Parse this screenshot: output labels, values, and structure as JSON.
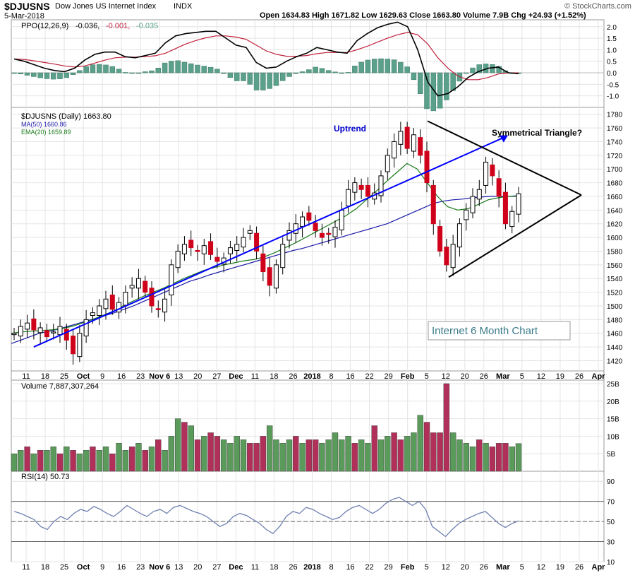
{
  "header": {
    "symbol": "$DJUSNS",
    "name": "Dow Jones US Internet Index",
    "exchange": "INDX",
    "date": "5-Mar-2018",
    "ohlc": "Open 1634.83  High 1671.82  Low 1629.63  Close 1663.80  Volume 7.9B  Chg +24.93 (+1.52%)",
    "credit": "© StockCharts.com"
  },
  "colors": {
    "up": "#ffffff",
    "down": "#d0021b",
    "volume_up": "#5a9a5a",
    "volume_down": "#b0305a",
    "ma50": "#1a1aa8",
    "ema20": "#1a7a1a",
    "ppo": "#000000",
    "signal": "#c0203a",
    "histogram": "#5aa08a",
    "rsi": "#7080b0",
    "trendline": "#0000ff",
    "annotation_blue": "#0000cc",
    "box_text": "#3a7a8a"
  },
  "chart_data": [
    {
      "panel": "ppo",
      "type": "line",
      "label_title": "PPO(12,26,9)",
      "ppo_value": "-0.036",
      "signal_value": "-0.001",
      "hist_value": "-0.035",
      "ylim": [
        -1.5,
        2.3
      ],
      "yticks": [
        "2.0",
        "1.5",
        "1.0",
        "0.5",
        "0.0",
        "-0.5",
        "-1.0"
      ],
      "ytick_values": [
        2.0,
        1.5,
        1.0,
        0.5,
        0.0,
        -0.5,
        -1.0
      ],
      "ppo_line": [
        0.6,
        0.5,
        0.35,
        0.2,
        0.1,
        0.05,
        0.2,
        0.55,
        0.8,
        0.9,
        0.9,
        0.7,
        0.65,
        0.75,
        0.85,
        1.3,
        1.6,
        1.7,
        1.75,
        1.8,
        1.8,
        1.5,
        1.2,
        1.1,
        0.45,
        0.2,
        0.25,
        0.5,
        0.7,
        0.85,
        1.1,
        1.0,
        0.9,
        0.85,
        1.4,
        1.7,
        1.95,
        2.1,
        2.2,
        2.0,
        1.0,
        -0.4,
        -1.0,
        -0.9,
        -0.6,
        -0.2,
        0.05,
        0.2,
        0.25,
        0.0,
        -0.036
      ],
      "signal_line": [
        0.6,
        0.58,
        0.52,
        0.45,
        0.38,
        0.3,
        0.25,
        0.3,
        0.42,
        0.55,
        0.65,
        0.68,
        0.68,
        0.7,
        0.74,
        0.85,
        1.05,
        1.25,
        1.4,
        1.52,
        1.6,
        1.6,
        1.55,
        1.45,
        1.2,
        0.95,
        0.8,
        0.72,
        0.72,
        0.75,
        0.83,
        0.88,
        0.88,
        0.88,
        1.0,
        1.15,
        1.33,
        1.5,
        1.65,
        1.75,
        1.65,
        1.25,
        0.65,
        0.2,
        -0.15,
        -0.3,
        -0.3,
        -0.2,
        -0.05,
        0.0,
        -0.001
      ]
    },
    {
      "panel": "price",
      "type": "candlestick",
      "legend_price": "$DJUSNS (Daily) 1663.80",
      "legend_ma": "MA(50) 1660.86",
      "legend_ema": "EMA(20) 1659.89",
      "ylim": [
        1405,
        1790
      ],
      "yticks": [
        "1780",
        "1760",
        "1740",
        "1720",
        "1700",
        "1680",
        "1660",
        "1640",
        "1620",
        "1600",
        "1580",
        "1560",
        "1540",
        "1520",
        "1500",
        "1480",
        "1460",
        "1440",
        "1420"
      ],
      "ytick_values": [
        1780,
        1760,
        1740,
        1720,
        1700,
        1680,
        1660,
        1640,
        1620,
        1600,
        1580,
        1560,
        1540,
        1520,
        1500,
        1480,
        1460,
        1440,
        1420
      ],
      "closes": [
        1460,
        1470,
        1475,
        1465,
        1468,
        1455,
        1462,
        1470,
        1450,
        1430,
        1460,
        1480,
        1490,
        1500,
        1510,
        1495,
        1505,
        1520,
        1530,
        1540,
        1520,
        1500,
        1495,
        1510,
        1560,
        1580,
        1590,
        1585,
        1580,
        1588,
        1575,
        1565,
        1570,
        1585,
        1590,
        1600,
        1610,
        1580,
        1550,
        1530,
        1560,
        1590,
        1610,
        1620,
        1630,
        1625,
        1610,
        1600,
        1605,
        1615,
        1640,
        1670,
        1680,
        1670,
        1660,
        1665,
        1690,
        1720,
        1740,
        1755,
        1730,
        1750,
        1720,
        1680,
        1620,
        1580,
        1560,
        1590,
        1620,
        1640,
        1660,
        1670,
        1710,
        1690,
        1660,
        1620,
        1638,
        1663.8
      ],
      "ma50": [
        1445,
        1450,
        1455,
        1460,
        1463,
        1466,
        1470,
        1474,
        1478,
        1482,
        1486,
        1490,
        1495,
        1500,
        1506,
        1512,
        1518,
        1524,
        1530,
        1536,
        1540,
        1545,
        1549,
        1553,
        1557,
        1561,
        1565,
        1569,
        1573,
        1577,
        1581,
        1584,
        1588,
        1592,
        1596,
        1600,
        1604,
        1608,
        1612,
        1616,
        1620,
        1626,
        1632,
        1638,
        1644,
        1650,
        1653,
        1655,
        1656,
        1658,
        1659,
        1660,
        1660,
        1660,
        1661
      ],
      "ema20": [
        1460,
        1462,
        1463,
        1464,
        1465,
        1467,
        1470,
        1475,
        1480,
        1486,
        1492,
        1500,
        1507,
        1514,
        1520,
        1526,
        1533,
        1540,
        1546,
        1552,
        1556,
        1560,
        1563,
        1566,
        1568,
        1572,
        1578,
        1585,
        1592,
        1600,
        1608,
        1616,
        1624,
        1632,
        1642,
        1655,
        1668,
        1682,
        1695,
        1708,
        1700,
        1680,
        1660,
        1645,
        1640,
        1642,
        1648,
        1655,
        1658,
        1660,
        1659.9
      ],
      "annotations": {
        "uptrend": "Uptrend",
        "triangle": "Symmetrical Triangle?",
        "box": "Internet 6 Month Chart"
      }
    },
    {
      "panel": "volume",
      "type": "bar",
      "label": "Volume 7,887,307,264",
      "ylim": [
        0,
        26
      ],
      "yticks": [
        "25B",
        "20B",
        "15B",
        "10B",
        "5B"
      ],
      "ytick_values": [
        25,
        20,
        15,
        10,
        5
      ],
      "values": [
        5,
        6,
        7,
        5,
        6,
        6,
        7,
        5,
        7,
        6,
        5,
        6,
        7,
        6,
        7,
        5,
        8,
        6,
        7,
        8,
        6,
        7,
        9,
        6,
        10,
        15,
        14,
        13,
        9,
        10,
        11,
        10,
        9,
        8,
        10,
        9,
        8,
        8,
        10,
        13,
        9,
        8,
        9,
        10,
        8,
        9,
        9,
        8,
        9,
        11,
        9,
        10,
        8,
        9,
        8,
        13,
        9,
        10,
        11,
        9,
        10,
        11,
        16,
        14,
        11,
        11,
        25,
        11,
        9,
        8,
        7,
        9,
        8,
        7,
        8,
        8,
        7,
        7.9
      ],
      "up": [
        1,
        1,
        0,
        1,
        0,
        1,
        1,
        0,
        1,
        0,
        1,
        1,
        0,
        1,
        1,
        0,
        1,
        1,
        0,
        1,
        0,
        1,
        0,
        1,
        1,
        1,
        0,
        1,
        0,
        1,
        0,
        0,
        1,
        1,
        1,
        1,
        0,
        0,
        0,
        1,
        1,
        1,
        1,
        0,
        1,
        0,
        0,
        1,
        1,
        1,
        1,
        1,
        0,
        1,
        1,
        0,
        1,
        1,
        0,
        0,
        1,
        1,
        1,
        0,
        0,
        0,
        0,
        1,
        1,
        1,
        1,
        0,
        1,
        0,
        0,
        0,
        1,
        1
      ]
    },
    {
      "panel": "rsi",
      "type": "line",
      "label": "RSI(14) 50.73",
      "ylim": [
        10,
        100
      ],
      "yticks": [
        "90",
        "70",
        "50",
        "30",
        "10"
      ],
      "ytick_values": [
        90,
        70,
        50,
        30,
        10
      ],
      "values": [
        60,
        58,
        55,
        52,
        45,
        42,
        50,
        55,
        52,
        58,
        62,
        60,
        65,
        62,
        58,
        55,
        60,
        66,
        62,
        58,
        55,
        60,
        62,
        58,
        64,
        66,
        63,
        60,
        58,
        55,
        50,
        45,
        48,
        55,
        58,
        56,
        52,
        48,
        42,
        38,
        45,
        55,
        60,
        58,
        64,
        62,
        58,
        55,
        52,
        54,
        60,
        64,
        66,
        62,
        58,
        62,
        68,
        72,
        74,
        70,
        66,
        70,
        62,
        45,
        40,
        35,
        42,
        48,
        52,
        55,
        58,
        60,
        54,
        48,
        44,
        48,
        50.73
      ],
      "bands": [
        70,
        50,
        30
      ]
    }
  ],
  "x_axis": {
    "labels": [
      "11",
      "18",
      "25",
      "Oct",
      "9",
      "16",
      "23",
      "Nov 6",
      "13",
      "20",
      "27",
      "Dec",
      "11",
      "18",
      "26",
      "2018",
      "8",
      "16",
      "22",
      "29",
      "Feb",
      "5",
      "12",
      "20",
      "26",
      "Mar",
      "5",
      "12",
      "19",
      "26",
      "Apr"
    ],
    "bold": [
      "Oct",
      "Nov 6",
      "Dec",
      "2018",
      "Feb",
      "Mar",
      "Apr"
    ]
  }
}
